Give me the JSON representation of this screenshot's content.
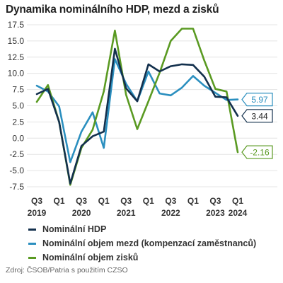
{
  "title": "Dynamika nominálního HDP, mezd a zisků",
  "source": "Zdroj: ČSOB/Patria s použitím CZSO",
  "colors": {
    "hdp": "#13304d",
    "mezd": "#2b8fbf",
    "zisku": "#5a9a22",
    "grid": "#e4e4e4"
  },
  "chart_data": {
    "type": "line",
    "title": "Dynamika nominálního HDP, mezd a zisků",
    "xlabel": "",
    "ylabel": "",
    "ylim": [
      -7.5,
      17.5
    ],
    "yticks": [
      "17.5",
      "15.0",
      "12.5",
      "10.0",
      "7.5",
      "5.0",
      "2.5",
      "0.0",
      "-2.5",
      "-5.0",
      "-7.5"
    ],
    "grid": true,
    "legend_position": "bottom-left",
    "x": [
      "2019Q3",
      "2019Q4",
      "2020Q1",
      "2020Q2",
      "2020Q3",
      "2020Q4",
      "2021Q1",
      "2021Q2",
      "2021Q3",
      "2021Q4",
      "2022Q1",
      "2022Q2",
      "2022Q3",
      "2022Q4",
      "2023Q1",
      "2023Q2",
      "2023Q3",
      "2023Q4",
      "2024Q1"
    ],
    "x_tick_labels": [
      {
        "quarter": "Q3",
        "year": "2019"
      },
      {
        "quarter": "Q1",
        "year": ""
      },
      {
        "quarter": "Q3",
        "year": "2020"
      },
      {
        "quarter": "Q1",
        "year": ""
      },
      {
        "quarter": "Q3",
        "year": "2021"
      },
      {
        "quarter": "Q1",
        "year": ""
      },
      {
        "quarter": "Q3",
        "year": "2022"
      },
      {
        "quarter": "Q1",
        "year": ""
      },
      {
        "quarter": "Q3",
        "year": "2023"
      },
      {
        "quarter": "Q1",
        "year": "2024"
      }
    ],
    "series": [
      {
        "name": "Nominální HDP",
        "color": "#13304d",
        "values": [
          6.8,
          7.6,
          2.5,
          -7.0,
          -1.2,
          0.3,
          1.0,
          13.8,
          7.7,
          5.7,
          11.4,
          10.3,
          11.1,
          11.4,
          11.3,
          9.5,
          6.4,
          6.3,
          3.44
        ]
      },
      {
        "name": "Nominální objem mezd (kompenzací zaměstnanců)",
        "color": "#2b8fbf",
        "values": [
          8.1,
          7.2,
          4.9,
          -3.7,
          1.0,
          4.0,
          -1.5,
          12.2,
          8.4,
          5.7,
          10.3,
          6.9,
          6.6,
          7.8,
          9.6,
          8.1,
          7.0,
          5.9,
          5.97
        ]
      },
      {
        "name": "Nominální objem zisků",
        "color": "#5a9a22",
        "values": [
          5.6,
          8.2,
          2.5,
          -7.2,
          -1.5,
          1.3,
          7.2,
          16.6,
          6.7,
          1.4,
          5.7,
          10.1,
          15.0,
          16.9,
          16.9,
          12.0,
          7.6,
          7.2,
          -2.16
        ]
      }
    ],
    "end_labels": [
      {
        "series": "Nominální objem mezd (kompenzací zaměstnanců)",
        "text": "5.97"
      },
      {
        "series": "Nominální HDP",
        "text": "3.44"
      },
      {
        "series": "Nominální objem zisků",
        "text": "-2.16"
      }
    ]
  }
}
